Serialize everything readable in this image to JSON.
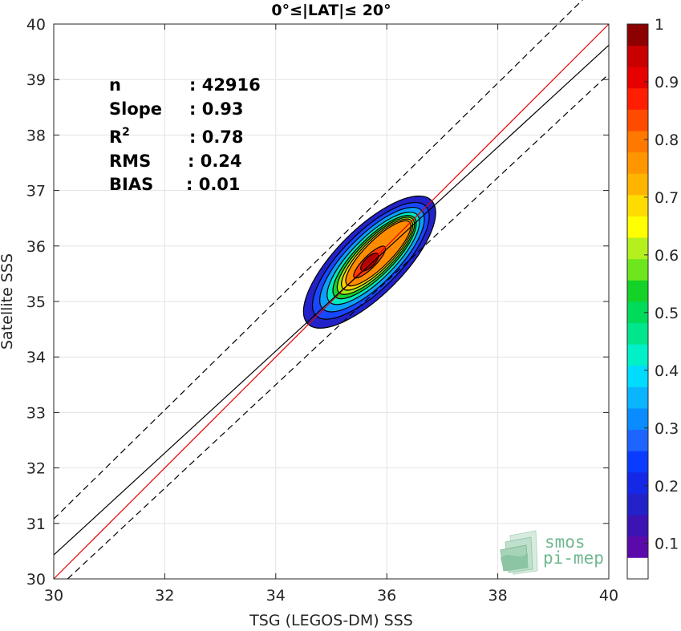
{
  "chart_data": {
    "type": "heatmap",
    "title": "0°≤|LAT|≤ 20°",
    "xlabel": "TSG (LEGOS-DM) SSS",
    "ylabel": "Satellite SSS",
    "xlim": [
      30,
      40
    ],
    "ylim": [
      30,
      40
    ],
    "xticks": [
      "30",
      "32",
      "34",
      "36",
      "38",
      "40"
    ],
    "yticks": [
      "30",
      "31",
      "32",
      "33",
      "34",
      "35",
      "36",
      "37",
      "38",
      "39",
      "40"
    ],
    "grid": true,
    "stats": [
      {
        "label": "n",
        "value": ": 42916"
      },
      {
        "label": "Slope",
        "value": ": 0.93"
      },
      {
        "label": "R",
        "sup": "2",
        "value": ": 0.78"
      },
      {
        "label": "RMS",
        "value": ": 0.24"
      },
      {
        "label": "BIAS",
        "value": ": 0.01"
      }
    ],
    "lines": [
      {
        "name": "one-to-one",
        "color": "#e00000",
        "dash": false,
        "points": [
          [
            30,
            30
          ],
          [
            40,
            40
          ]
        ]
      },
      {
        "name": "regression",
        "color": "#000000",
        "dash": false,
        "points": [
          [
            30,
            30.43
          ],
          [
            40,
            39.62
          ]
        ]
      },
      {
        "name": "upper-bound",
        "color": "#000000",
        "dash": true,
        "points": [
          [
            30,
            31.08
          ],
          [
            40,
            40.9
          ]
        ]
      },
      {
        "name": "lower-bound",
        "color": "#000000",
        "dash": true,
        "points": [
          [
            30.25,
            30
          ],
          [
            40,
            39.1
          ]
        ]
      }
    ],
    "density": {
      "center": [
        35.43,
        35.45
      ],
      "axis_angle_deg": 45,
      "levels": [
        {
          "level": 0.05,
          "color": "#2222c8",
          "extent": [
            [
              34.65,
              36.8
            ],
            [
              34.65,
              36.95
            ]
          ]
        },
        {
          "level": 0.15,
          "color": "#1946ff",
          "extent": [
            [
              34.75,
              36.7
            ],
            [
              34.75,
              36.75
            ]
          ]
        },
        {
          "level": 0.25,
          "color": "#0aa0ff",
          "extent": [
            [
              34.85,
              36.6
            ],
            [
              34.85,
              36.65
            ]
          ]
        },
        {
          "level": 0.35,
          "color": "#00e8c0",
          "extent": [
            [
              34.95,
              36.5
            ],
            [
              34.95,
              36.55
            ]
          ]
        },
        {
          "level": 0.45,
          "color": "#19d232",
          "extent": [
            [
              35.0,
              36.45
            ],
            [
              35.05,
              36.45
            ]
          ]
        },
        {
          "level": 0.55,
          "color": "#a5e619",
          "extent": [
            [
              35.05,
              36.4
            ],
            [
              35.1,
              36.4
            ]
          ]
        },
        {
          "level": 0.65,
          "color": "#ffd200",
          "extent": [
            [
              35.1,
              36.35
            ],
            [
              35.15,
              36.35
            ]
          ]
        },
        {
          "level": 0.75,
          "color": "#ff8c00",
          "extent": [
            [
              35.15,
              36.3
            ],
            [
              35.2,
              36.3
            ]
          ]
        },
        {
          "level": 0.85,
          "color": "#ff3c00",
          "extent": [
            [
              35.2,
              35.8
            ],
            [
              35.25,
              35.75
            ]
          ]
        },
        {
          "level": 0.95,
          "color": "#b40000",
          "extent": [
            [
              35.28,
              35.55
            ],
            [
              35.28,
              35.6
            ]
          ]
        }
      ]
    },
    "colorbar": {
      "ticks": [
        "0.1",
        "0.2",
        "0.3",
        "0.4",
        "0.5",
        "0.6",
        "0.7",
        "0.8",
        "0.9",
        "1"
      ],
      "colors": [
        "#ffffff",
        "#5a0aaa",
        "#3c14b4",
        "#2222c8",
        "#1428e6",
        "#0a3cff",
        "#1e64ff",
        "#0a8cff",
        "#0ab4ff",
        "#00dcff",
        "#00f0c8",
        "#00e68c",
        "#00dc5a",
        "#14d228",
        "#6ee61e",
        "#b4f01e",
        "#ffff00",
        "#ffdc00",
        "#ffb400",
        "#ff9600",
        "#ff7800",
        "#ff4b00",
        "#ff1e00",
        "#e60000",
        "#c80000",
        "#8c0000"
      ]
    }
  },
  "logo": {
    "line1": "smos",
    "line2": "pi-mep"
  }
}
